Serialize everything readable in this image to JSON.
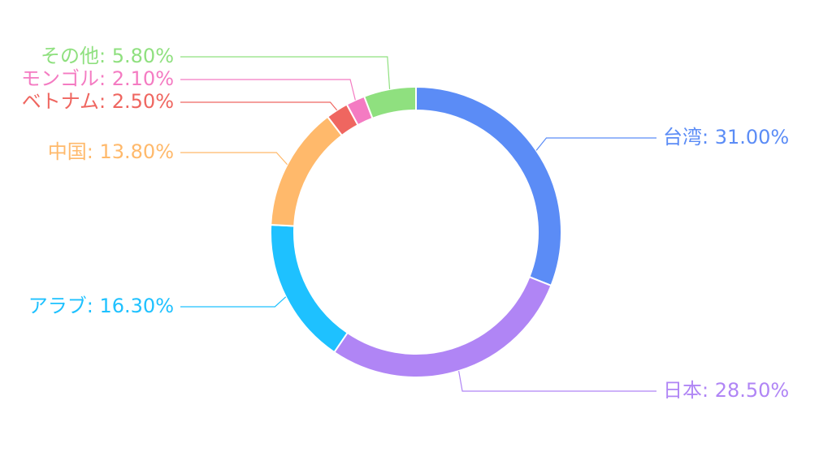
{
  "chart_data": {
    "type": "donut",
    "categories": [
      "台湾",
      "日本",
      "アラブ",
      "中国",
      "ベトナム",
      "モンゴル",
      "その他"
    ],
    "values": [
      31.0,
      28.5,
      16.3,
      13.8,
      2.5,
      2.1,
      5.8
    ],
    "value_labels": [
      "31.00%",
      "28.50%",
      "16.30%",
      "13.80%",
      "2.50%",
      "2.10%",
      "5.80%"
    ],
    "colors": [
      "#5b8cf6",
      "#b085f5",
      "#1ec1ff",
      "#ffb96b",
      "#ef6660",
      "#f47bc2",
      "#8fe07f"
    ]
  }
}
